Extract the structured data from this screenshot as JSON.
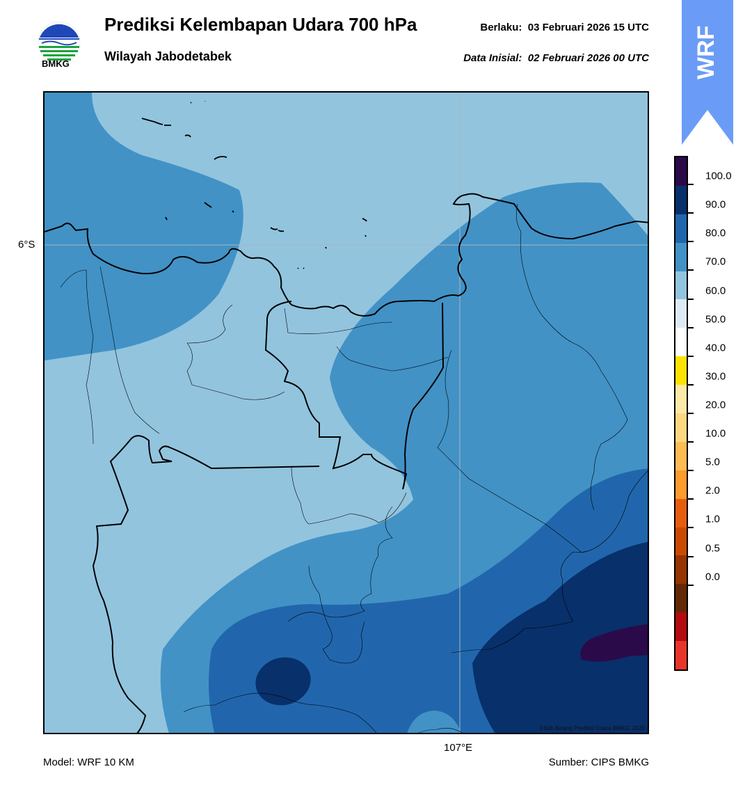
{
  "header": {
    "logo_text": "BMKG",
    "title": "Prediksi Kelembapan Udara 700 hPa",
    "subtitle": "Wilayah Jabodetabek",
    "valid_label": "Berlaku:",
    "valid_time": "03 Februari 2026 15 UTC",
    "init_label": "Data Inisial:",
    "init_time": "02 Februari 2026 00 UTC"
  },
  "map": {
    "lat_label": "6°S",
    "lon_label": "107°E",
    "copyright": "©Sub Bidang Prediksi Cuaca BMKG, 2020"
  },
  "badge": {
    "text": "WRF",
    "color": "#6a9cf7"
  },
  "colorbar": {
    "colors_top_to_bottom": [
      "#2b0a4a",
      "#08306b",
      "#2166ac",
      "#4292c6",
      "#92c4de",
      "#deebf7",
      "#ffffff",
      "#ffe300",
      "#ffe9a9",
      "#ffd780",
      "#ffbc54",
      "#fd9b2c",
      "#e65d10",
      "#cb4a02",
      "#953501",
      "#632907",
      "#b30b11",
      "#e8352b"
    ],
    "labels": [
      "100.0",
      "90.0",
      "80.0",
      "70.0",
      "60.0",
      "50.0",
      "40.0",
      "30.0",
      "20.0",
      "10.0",
      "5.0",
      "2.0",
      "1.0",
      "0.5",
      "0.0"
    ]
  },
  "footer": {
    "model": "Model: WRF 10 KM",
    "source": "Sumber: CIPS BMKG"
  },
  "colors": {
    "rh_60_70": "#92c4de",
    "rh_70_80": "#4292c6",
    "rh_80_90": "#2166ac",
    "rh_90_100": "#08306b",
    "rh_100": "#2b0a4a"
  }
}
